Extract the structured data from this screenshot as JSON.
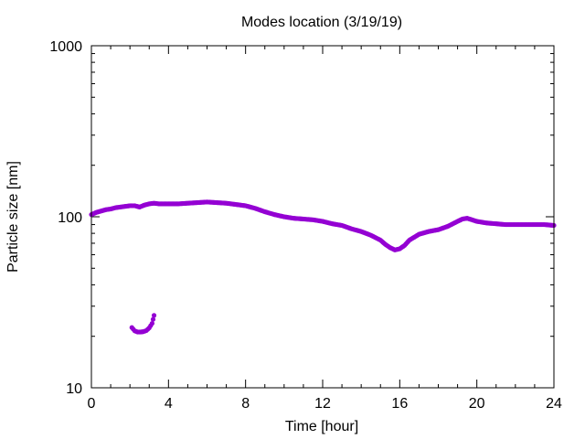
{
  "chart_data": {
    "type": "scatter",
    "title": "Modes location (3/19/19)",
    "xlabel": "Time [hour]",
    "ylabel": "Particle size [nm]",
    "xlim": [
      0,
      24
    ],
    "ylim": [
      10,
      1000
    ],
    "yscale": "log",
    "xticks": [
      0,
      4,
      8,
      12,
      16,
      20,
      24
    ],
    "xtick_labels": [
      "0",
      "4",
      "8",
      "12",
      "16",
      "20",
      "24"
    ],
    "yticks": [
      10,
      100,
      1000
    ],
    "ytick_labels": [
      "10",
      "100",
      "1000"
    ],
    "grid": false,
    "legend": "none",
    "marker_color": "#9400d3",
    "series": [
      {
        "x": [
          0,
          0.25,
          0.5,
          0.75,
          1.0,
          1.25,
          1.5,
          1.75,
          2.0,
          2.25,
          2.5,
          2.75,
          3.0,
          3.25,
          3.5,
          4.0,
          4.5,
          5.0,
          5.5,
          6.0,
          6.5,
          7.0,
          7.5,
          8.0,
          8.5,
          9.0,
          9.5,
          10.0,
          10.5,
          11.0,
          11.5,
          12.0,
          12.5,
          13.0,
          13.5,
          14.0,
          14.5,
          15.0,
          15.25,
          15.5,
          15.75,
          16.0,
          16.25,
          16.5,
          17.0,
          17.5,
          18.0,
          18.5,
          19.0,
          19.25,
          19.5,
          19.75,
          20.0,
          20.5,
          21.0,
          21.5,
          22.0,
          22.5,
          23.0,
          23.5,
          24.0
        ],
        "y": [
          103,
          106,
          108,
          110,
          111,
          113,
          114,
          115,
          116,
          116,
          114,
          117,
          119,
          120,
          119,
          119,
          119,
          120,
          121,
          122,
          121,
          120,
          118,
          116,
          112,
          107,
          103,
          100,
          98,
          97,
          96,
          94,
          91,
          89,
          85,
          82,
          78,
          73,
          69,
          66,
          64,
          65,
          68,
          73,
          79,
          82,
          84,
          88,
          94,
          97,
          98,
          96,
          94,
          92,
          91,
          90,
          90,
          90,
          90,
          90,
          89
        ]
      },
      {
        "x": [
          2.1,
          2.25,
          2.4,
          2.55,
          2.7,
          2.85,
          3.0,
          3.15,
          3.25
        ],
        "y": [
          22.5,
          21.5,
          21.2,
          21.2,
          21.3,
          21.6,
          22.4,
          23.8,
          26.5
        ]
      }
    ]
  }
}
